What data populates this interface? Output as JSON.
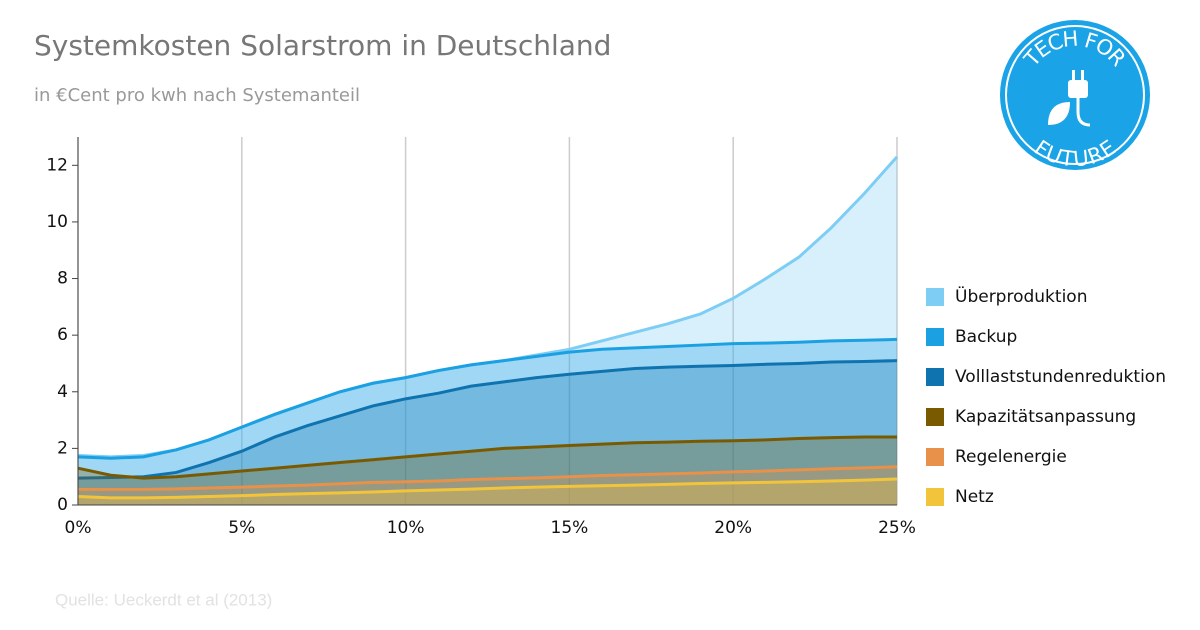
{
  "chart_data": {
    "type": "area",
    "title": "Systemkosten Solarstrom in Deutschland",
    "subtitle": "in €Cent pro kwh nach Systemanteil",
    "source": "Quelle: Ueckerdt et al (2013)",
    "logo": {
      "top": "TECH FOR",
      "bottom": "FUTURE"
    },
    "x": [
      0,
      1,
      2,
      3,
      4,
      5,
      6,
      7,
      8,
      9,
      10,
      11,
      12,
      13,
      14,
      15,
      16,
      17,
      18,
      19,
      20,
      21,
      22,
      23,
      24,
      25
    ],
    "xlim": [
      0,
      25
    ],
    "xticks": [
      {
        "value": 0,
        "label": "0%"
      },
      {
        "value": 5,
        "label": "5%"
      },
      {
        "value": 10,
        "label": "10%"
      },
      {
        "value": 15,
        "label": "15%"
      },
      {
        "value": 20,
        "label": "20%"
      },
      {
        "value": 25,
        "label": "25%"
      }
    ],
    "ylim": [
      0,
      13
    ],
    "yticks": [
      0,
      2,
      4,
      6,
      8,
      10,
      12
    ],
    "grid": "x",
    "legend": "right",
    "series": [
      {
        "name": "Überproduktion",
        "color": "#7dcdf5",
        "values": [
          1.75,
          1.7,
          1.75,
          1.95,
          2.3,
          2.75,
          3.2,
          3.6,
          4.0,
          4.3,
          4.5,
          4.75,
          4.95,
          5.1,
          5.3,
          5.5,
          5.8,
          6.1,
          6.4,
          6.75,
          7.3,
          8.0,
          8.75,
          9.8,
          11.0,
          12.3
        ]
      },
      {
        "name": "Backup",
        "color": "#1ba0e2",
        "values": [
          1.7,
          1.65,
          1.7,
          1.95,
          2.3,
          2.75,
          3.2,
          3.6,
          4.0,
          4.3,
          4.5,
          4.75,
          4.95,
          5.1,
          5.25,
          5.4,
          5.5,
          5.55,
          5.6,
          5.65,
          5.7,
          5.72,
          5.75,
          5.8,
          5.82,
          5.85
        ]
      },
      {
        "name": "Volllaststundenreduktion",
        "color": "#0f73b0",
        "values": [
          0.95,
          0.97,
          1.0,
          1.15,
          1.5,
          1.9,
          2.4,
          2.8,
          3.15,
          3.5,
          3.75,
          3.95,
          4.2,
          4.35,
          4.5,
          4.62,
          4.72,
          4.82,
          4.87,
          4.9,
          4.93,
          4.97,
          5.0,
          5.05,
          5.07,
          5.1
        ]
      },
      {
        "name": "Kapazitätsanpassung",
        "color": "#7a5a00",
        "values": [
          1.3,
          1.05,
          0.95,
          1.0,
          1.1,
          1.2,
          1.3,
          1.4,
          1.5,
          1.6,
          1.7,
          1.8,
          1.9,
          2.0,
          2.05,
          2.1,
          2.15,
          2.2,
          2.22,
          2.25,
          2.27,
          2.3,
          2.35,
          2.38,
          2.4,
          2.4
        ]
      },
      {
        "name": "Regelenergie",
        "color": "#e8914a",
        "values": [
          0.55,
          0.55,
          0.55,
          0.57,
          0.6,
          0.63,
          0.67,
          0.7,
          0.75,
          0.8,
          0.82,
          0.85,
          0.9,
          0.93,
          0.96,
          1.0,
          1.04,
          1.07,
          1.1,
          1.13,
          1.17,
          1.2,
          1.24,
          1.28,
          1.31,
          1.35
        ]
      },
      {
        "name": "Netz",
        "color": "#f2c43c",
        "values": [
          0.3,
          0.25,
          0.25,
          0.27,
          0.3,
          0.33,
          0.37,
          0.4,
          0.43,
          0.46,
          0.5,
          0.53,
          0.56,
          0.6,
          0.63,
          0.66,
          0.68,
          0.7,
          0.73,
          0.76,
          0.78,
          0.8,
          0.82,
          0.85,
          0.88,
          0.92
        ]
      }
    ]
  }
}
